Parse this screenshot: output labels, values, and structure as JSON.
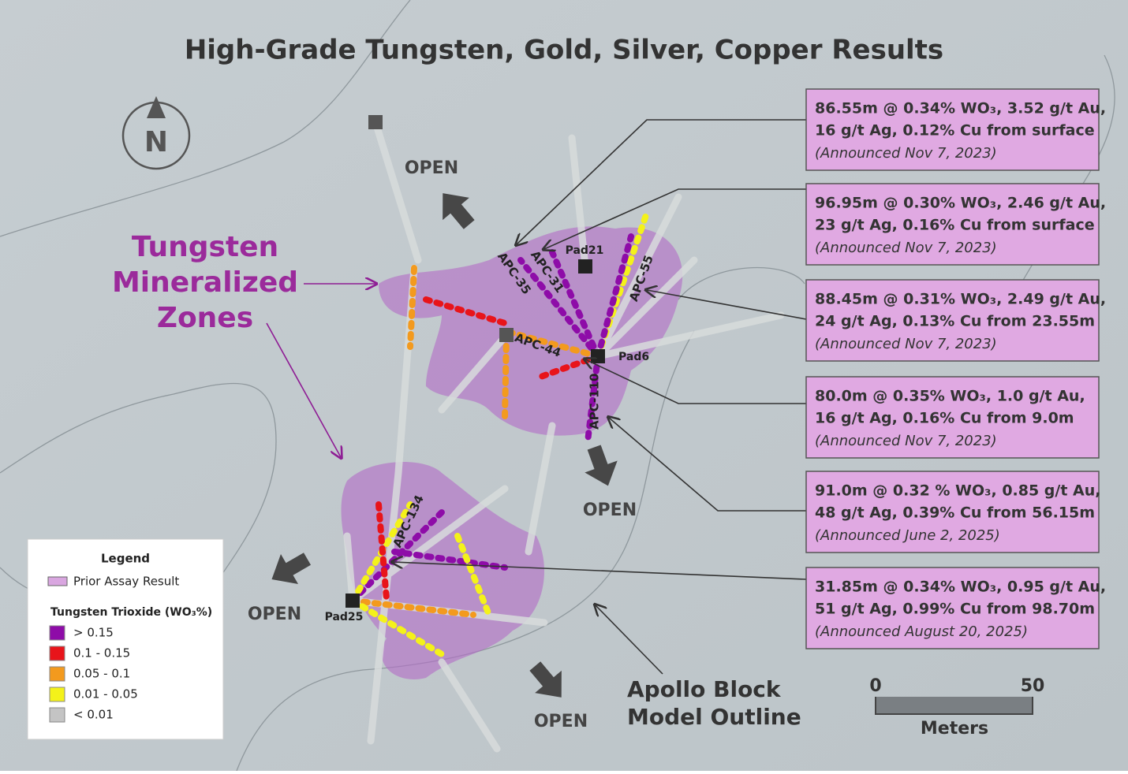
{
  "title": "High-Grade Tungsten, Gold, Silver, Copper Results",
  "north": "N",
  "zone_label": [
    "Tungsten",
    "Mineralized",
    "Zones"
  ],
  "open_labels": [
    "OPEN",
    "OPEN",
    "OPEN",
    "OPEN"
  ],
  "pads": [
    "Pad21",
    "Pad6",
    "Pad25"
  ],
  "holes": [
    "APC-35",
    "APC-31",
    "APC-55",
    "APC-44",
    "APC-110",
    "APC-134"
  ],
  "results": [
    {
      "lines": [
        "86.55m @ 0.34% WO₃, 3.52 g/t Au,",
        "16 g/t Ag, 0.12% Cu from surface"
      ],
      "announced": "(Announced Nov 7, 2023)"
    },
    {
      "lines": [
        "96.95m @ 0.30% WO₃, 2.46 g/t Au,",
        "23 g/t Ag, 0.16% Cu from surface"
      ],
      "announced": "(Announced Nov 7, 2023)"
    },
    {
      "lines": [
        "88.45m @ 0.31% WO₃, 2.49 g/t Au,",
        "24 g/t Ag, 0.13% Cu from 23.55m"
      ],
      "announced": "(Announced Nov 7, 2023)"
    },
    {
      "lines": [
        "80.0m @ 0.35% WO₃, 1.0 g/t Au,",
        "16 g/t Ag, 0.16% Cu from 9.0m"
      ],
      "announced": "(Announced Nov 7, 2023)"
    },
    {
      "lines": [
        "91.0m @ 0.32 % WO₃, 0.85 g/t Au,",
        "48 g/t Ag, 0.39% Cu from 56.15m"
      ],
      "announced": "(Announced June 2, 2025)"
    },
    {
      "lines": [
        "31.85m @ 0.34% WO₃, 0.95 g/t Au,",
        "51 g/t Ag, 0.99% Cu from 98.70m"
      ],
      "announced": "(Announced August 20, 2025)"
    }
  ],
  "outline_label": [
    "Apollo Block",
    "Model Outline"
  ],
  "scale": {
    "ticks": [
      "0",
      "50"
    ],
    "unit": "Meters"
  },
  "legend": {
    "title": "Legend",
    "prior": "Prior Assay Result",
    "prior_color": "#d9a6e0",
    "subtitle": "Tungsten Trioxide (WO₃%)",
    "items": [
      {
        "label": "> 0.15",
        "color": "#8e0ca8"
      },
      {
        "label": "0.1 - 0.15",
        "color": "#e8141a"
      },
      {
        "label": "0.05 - 0.1",
        "color": "#f39a1e"
      },
      {
        "label": "0.01 - 0.05",
        "color": "#f4f21a"
      },
      {
        "label": "< 0.01",
        "color": "#c4c4c4"
      }
    ]
  }
}
